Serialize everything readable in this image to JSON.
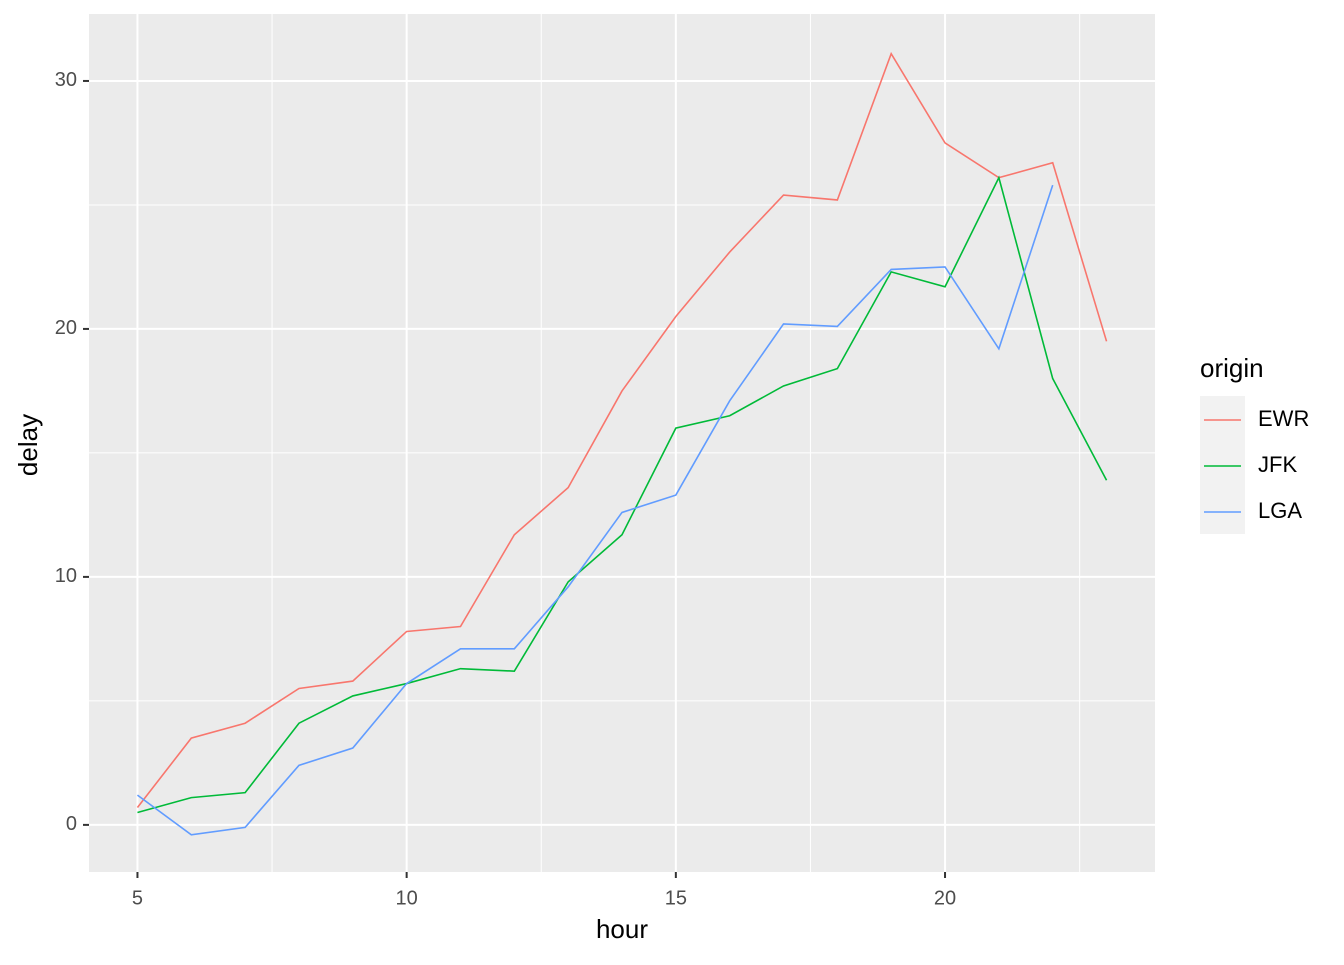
{
  "chart_data": {
    "type": "line",
    "x_label": "hour",
    "y_label": "delay",
    "legend_title": "origin",
    "x": [
      5,
      6,
      7,
      8,
      9,
      10,
      11,
      12,
      13,
      14,
      15,
      16,
      17,
      18,
      19,
      20,
      21,
      22,
      23
    ],
    "series": [
      {
        "name": "EWR",
        "color": "#f8766d",
        "values": [
          0.7,
          3.5,
          4.1,
          5.5,
          5.8,
          7.8,
          8.0,
          11.7,
          13.6,
          17.5,
          20.5,
          23.1,
          25.4,
          25.2,
          31.1,
          27.5,
          26.1,
          26.7,
          19.5
        ]
      },
      {
        "name": "JFK",
        "color": "#00ba38",
        "values": [
          0.5,
          1.1,
          1.3,
          4.1,
          5.2,
          5.7,
          6.3,
          6.2,
          9.8,
          11.7,
          16.0,
          16.5,
          17.7,
          18.4,
          22.3,
          21.7,
          26.1,
          18.0,
          13.9
        ]
      },
      {
        "name": "LGA",
        "color": "#619cff",
        "values": [
          1.2,
          -0.4,
          -0.1,
          2.4,
          3.1,
          5.7,
          7.1,
          7.1,
          9.6,
          12.6,
          13.3,
          17.1,
          20.2,
          20.1,
          22.4,
          22.5,
          19.2,
          25.8,
          null
        ]
      }
    ],
    "xlim": [
      4.1,
      23.9
    ],
    "ylim": [
      -1.9,
      32.7
    ],
    "xticks": [
      5,
      10,
      15,
      20
    ],
    "yticks": [
      0,
      10,
      20,
      30
    ],
    "x_minor_ticks": [
      7.5,
      12.5,
      17.5,
      22.5
    ],
    "y_minor_ticks": [
      5,
      15,
      25
    ],
    "grid": true
  }
}
